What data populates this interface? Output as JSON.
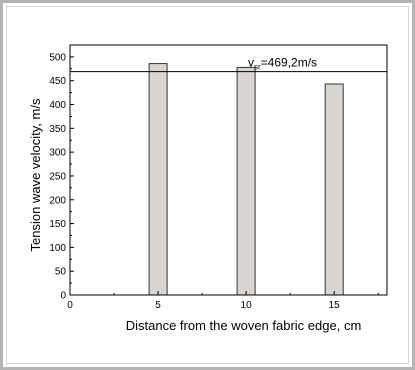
{
  "chart_data": {
    "type": "bar",
    "x": [
      5,
      10,
      15
    ],
    "values": [
      486,
      478,
      443
    ],
    "xlabel": "Distance from the woven fabric edge, cm",
    "ylabel": "Tension wave velocity, m/s",
    "xlim": [
      0,
      18
    ],
    "ylim": [
      0,
      525
    ],
    "xticks": [
      0,
      5,
      10,
      15
    ],
    "yticks": [
      0,
      50,
      100,
      150,
      200,
      250,
      300,
      350,
      400,
      450,
      500
    ],
    "reference_line": {
      "value": 469.2,
      "label_main": "v",
      "label_sub": "sr",
      "label_rest": "=469,2m/s"
    },
    "grid": false,
    "colors": {
      "bar_fill": "#d9d6d2",
      "bar_stroke": "#333333",
      "axis": "#000000"
    }
  }
}
